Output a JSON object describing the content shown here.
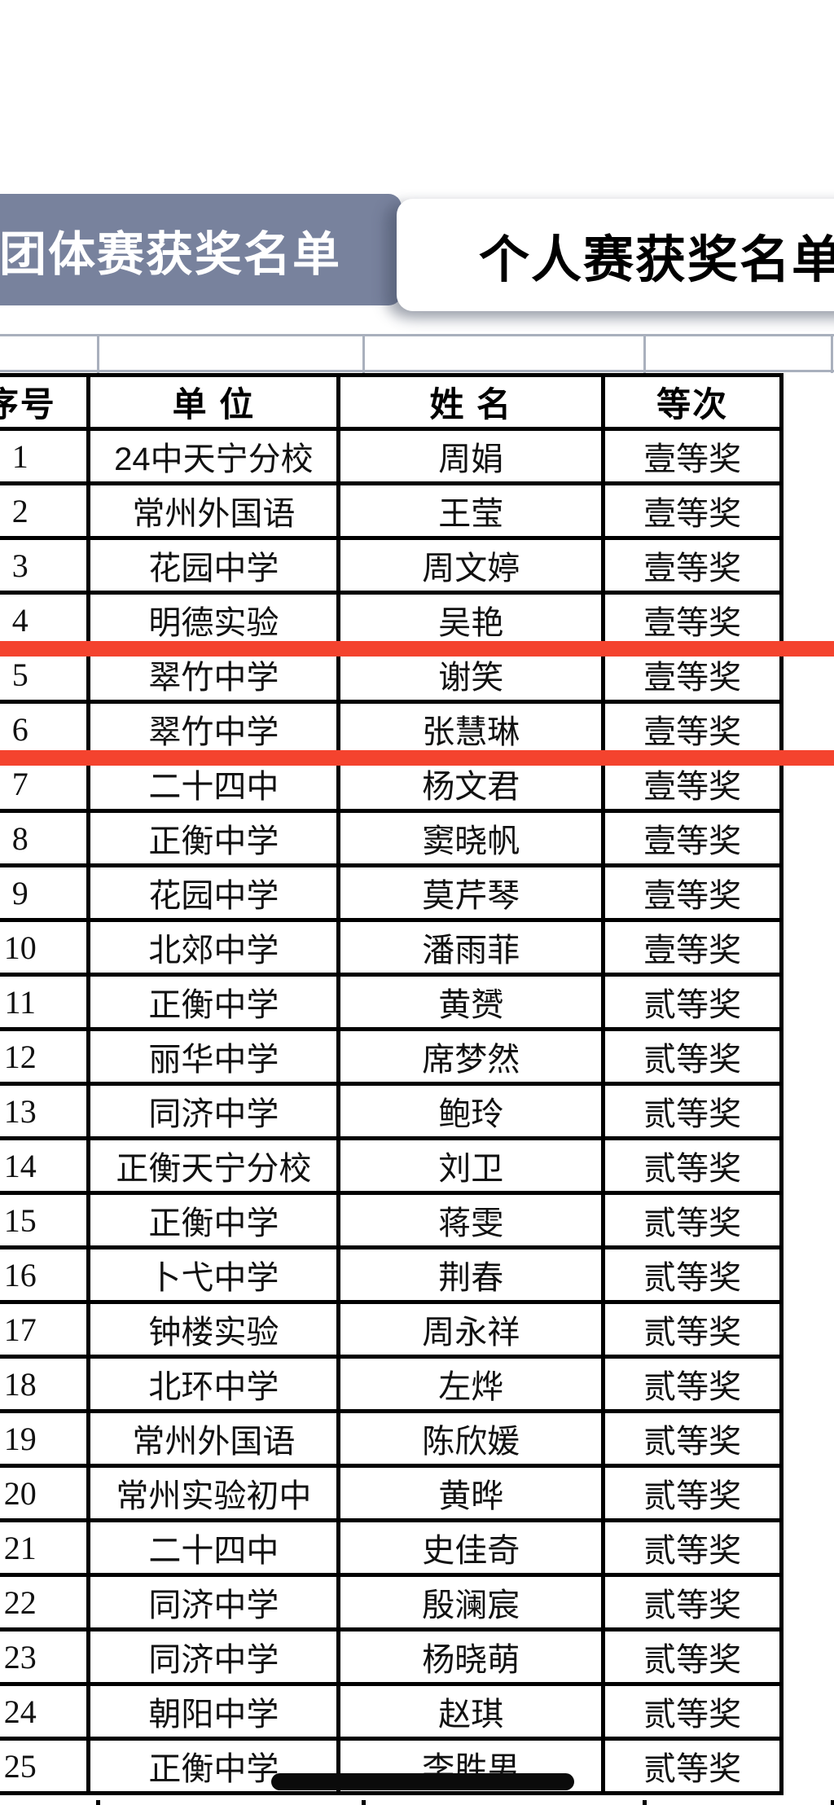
{
  "tabs": {
    "team_tab_label": "团体赛获奖名单",
    "individual_tab_label": "个人赛获奖名单"
  },
  "table": {
    "columns": [
      "序号",
      "单 位",
      "姓 名",
      "等次"
    ],
    "rows": [
      {
        "no": "1",
        "unit": "24中天宁分校",
        "name": "周娟",
        "grade": "壹等奖"
      },
      {
        "no": "2",
        "unit": "常州外国语",
        "name": "王莹",
        "grade": "壹等奖"
      },
      {
        "no": "3",
        "unit": "花园中学",
        "name": "周文婷",
        "grade": "壹等奖"
      },
      {
        "no": "4",
        "unit": "明德实验",
        "name": "吴艳",
        "grade": "壹等奖"
      },
      {
        "no": "5",
        "unit": "翠竹中学",
        "name": "谢笑",
        "grade": "壹等奖"
      },
      {
        "no": "6",
        "unit": "翠竹中学",
        "name": "张慧琳",
        "grade": "壹等奖"
      },
      {
        "no": "7",
        "unit": "二十四中",
        "name": "杨文君",
        "grade": "壹等奖"
      },
      {
        "no": "8",
        "unit": "正衡中学",
        "name": "窦晓帆",
        "grade": "壹等奖"
      },
      {
        "no": "9",
        "unit": "花园中学",
        "name": "莫芹琴",
        "grade": "壹等奖"
      },
      {
        "no": "10",
        "unit": "北郊中学",
        "name": "潘雨菲",
        "grade": "壹等奖"
      },
      {
        "no": "11",
        "unit": "正衡中学",
        "name": "黄赟",
        "grade": "贰等奖"
      },
      {
        "no": "12",
        "unit": "丽华中学",
        "name": "席梦然",
        "grade": "贰等奖"
      },
      {
        "no": "13",
        "unit": "同济中学",
        "name": "鲍玲",
        "grade": "贰等奖"
      },
      {
        "no": "14",
        "unit": "正衡天宁分校",
        "name": "刘卫",
        "grade": "贰等奖"
      },
      {
        "no": "15",
        "unit": "正衡中学",
        "name": "蒋雯",
        "grade": "贰等奖"
      },
      {
        "no": "16",
        "unit": "卜弋中学",
        "name": "荆春",
        "grade": "贰等奖"
      },
      {
        "no": "17",
        "unit": "钟楼实验",
        "name": "周永祥",
        "grade": "贰等奖"
      },
      {
        "no": "18",
        "unit": "北环中学",
        "name": "左烨",
        "grade": "贰等奖"
      },
      {
        "no": "19",
        "unit": "常州外国语",
        "name": "陈欣媛",
        "grade": "贰等奖"
      },
      {
        "no": "20",
        "unit": "常州实验初中",
        "name": "黄晔",
        "grade": "贰等奖"
      },
      {
        "no": "21",
        "unit": "二十四中",
        "name": "史佳奇",
        "grade": "贰等奖"
      },
      {
        "no": "22",
        "unit": "同济中学",
        "name": "殷澜宸",
        "grade": "贰等奖"
      },
      {
        "no": "23",
        "unit": "同济中学",
        "name": "杨晓萌",
        "grade": "贰等奖"
      },
      {
        "no": "24",
        "unit": "朝阳中学",
        "name": "赵琪",
        "grade": "贰等奖"
      },
      {
        "no": "25",
        "unit": "正衡中学",
        "name": "李胜男",
        "grade": "贰等奖"
      }
    ]
  },
  "annotations": {
    "highlight_color": "#f4432e",
    "marker_color": "#0b0b0b",
    "inactive_tab_color": "#78829d"
  }
}
